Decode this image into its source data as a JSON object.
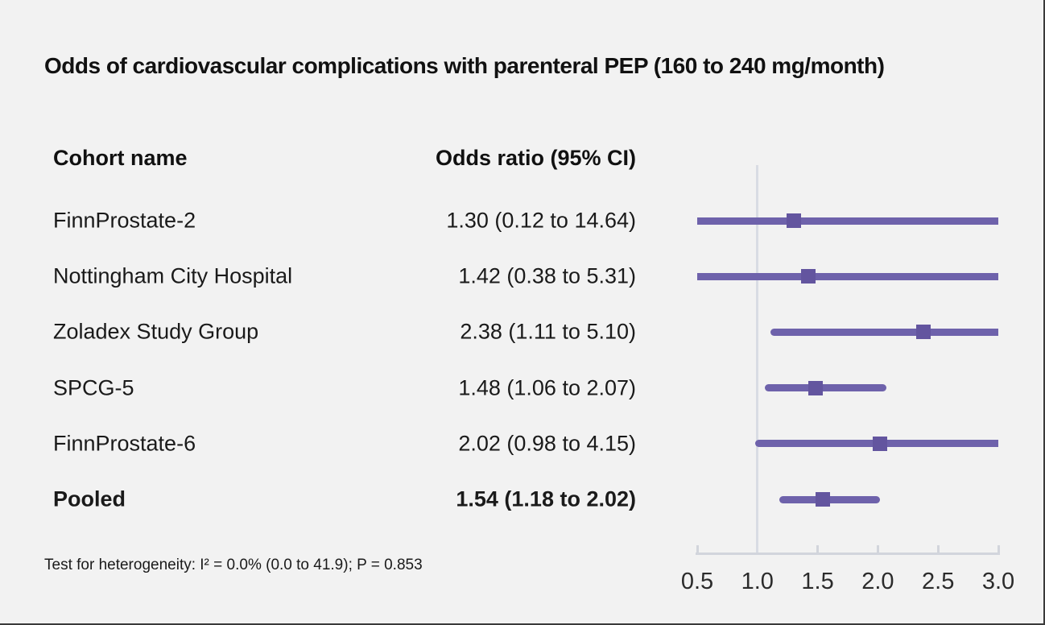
{
  "title": "Odds of cardiovascular complications with parenteral PEP (160 to 240 mg/month)",
  "columns": {
    "cohort": "Cohort name",
    "odds_ratio": "Odds ratio (95% CI)"
  },
  "footnote": "Test for heterogeneity: I² = 0.0% (0.0 to 41.9); P = 0.853",
  "colors": {
    "background": "#f2f2f2",
    "text": "#1a1a1a",
    "ci_line": "#6e62ab",
    "marker": "#63559f",
    "reference_line": "#d9dce4",
    "axis": "#d2d5dc",
    "tick_label": "#2b2b2b"
  },
  "chart_data": {
    "type": "forest",
    "title": "Odds of cardiovascular complications with parenteral PEP (160 to 240 mg/month)",
    "x_ticks": [
      0.5,
      1.0,
      1.5,
      2.0,
      2.5,
      3.0
    ],
    "xlim": [
      0.5,
      3.0
    ],
    "reference_value": 1.0,
    "clip_note": "CI lines truncated at axis limits 0.5 and 3.0",
    "rows": [
      {
        "label": "FinnProstate-2",
        "value_text": "1.30 (0.12 to 14.64)",
        "or": 1.3,
        "ci_low": 0.12,
        "ci_high": 14.64,
        "bold": false
      },
      {
        "label": "Nottingham City Hospital",
        "value_text": "1.42 (0.38 to 5.31)",
        "or": 1.42,
        "ci_low": 0.38,
        "ci_high": 5.31,
        "bold": false
      },
      {
        "label": "Zoladex Study Group",
        "value_text": "2.38 (1.11 to 5.10)",
        "or": 2.38,
        "ci_low": 1.11,
        "ci_high": 5.1,
        "bold": false
      },
      {
        "label": "SPCG-5",
        "value_text": "1.48 (1.06 to 2.07)",
        "or": 1.48,
        "ci_low": 1.06,
        "ci_high": 2.07,
        "bold": false
      },
      {
        "label": "FinnProstate-6",
        "value_text": "2.02 (0.98 to 4.15)",
        "or": 2.02,
        "ci_low": 0.98,
        "ci_high": 4.15,
        "bold": false
      },
      {
        "label": "Pooled",
        "value_text": "1.54 (1.18 to 2.02)",
        "or": 1.54,
        "ci_low": 1.18,
        "ci_high": 2.02,
        "bold": true
      }
    ]
  }
}
